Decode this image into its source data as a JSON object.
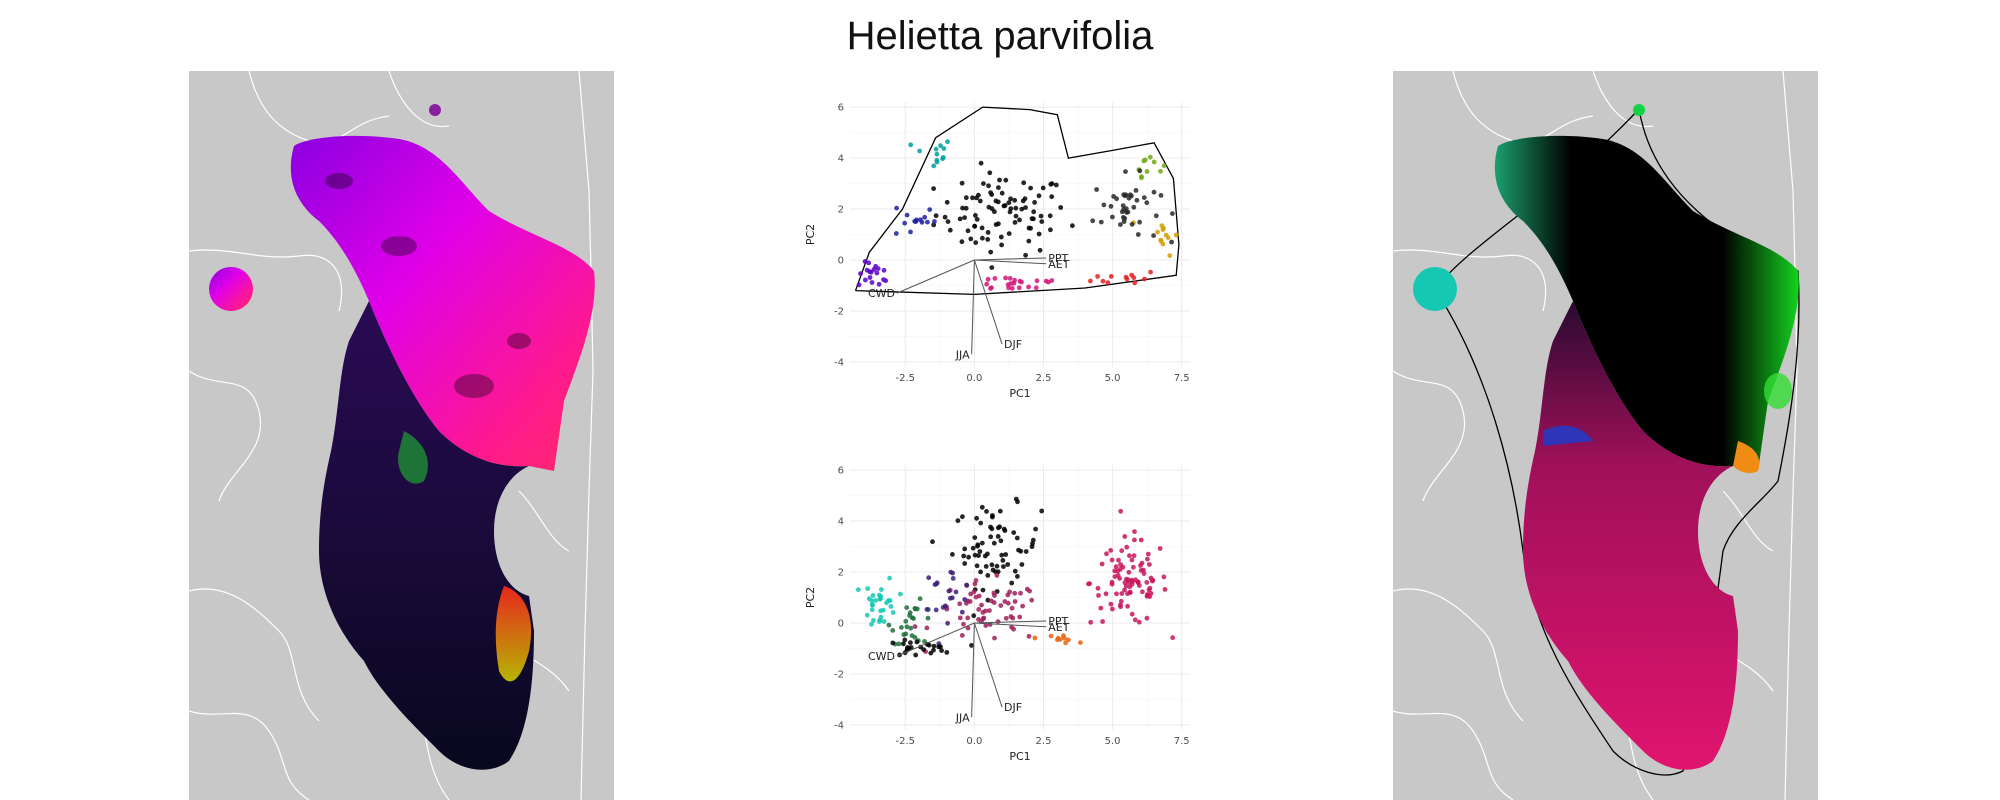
{
  "title": "Helietta parvifolia",
  "colors": {
    "map_background": "#c8c8c8",
    "map_borders": "#ffffff",
    "grid": "#ebebeb",
    "hull": "#000000",
    "loading_arrows": "#555555"
  },
  "chart_data": [
    {
      "type": "scatter",
      "panel": "top",
      "xlabel": "PC1",
      "ylabel": "PC2",
      "xlim": [
        -4.5,
        7.8
      ],
      "ylim": [
        -4.2,
        6.2
      ],
      "xticks": [
        "-2.5",
        "0.0",
        "2.5",
        "5.0",
        "7.5"
      ],
      "yticks": [
        "-4",
        "-2",
        "0",
        "2",
        "4",
        "6"
      ],
      "grid": true,
      "hull_outline": true,
      "point_cloud": [
        {
          "color": "#000000",
          "x_center": 1.0,
          "y_center": 1.8,
          "x_spread": 2.4,
          "y_spread": 1.6,
          "count": 90
        },
        {
          "color": "#5a00c8",
          "x_center": -3.6,
          "y_center": -0.6,
          "x_spread": 0.6,
          "y_spread": 0.5,
          "count": 18
        },
        {
          "color": "#1e1ea0",
          "x_center": -2.2,
          "y_center": 1.6,
          "x_spread": 0.8,
          "y_spread": 0.8,
          "count": 14
        },
        {
          "color": "#00a0a0",
          "x_center": -1.5,
          "y_center": 4.2,
          "x_spread": 0.7,
          "y_spread": 0.6,
          "count": 12
        },
        {
          "color": "#d21478",
          "x_center": 1.5,
          "y_center": -0.9,
          "x_spread": 2.0,
          "y_spread": 0.35,
          "count": 22
        },
        {
          "color": "#e61e1e",
          "x_center": 5.5,
          "y_center": -0.7,
          "x_spread": 1.2,
          "y_spread": 0.3,
          "count": 12
        },
        {
          "color": "#d2a000",
          "x_center": 6.8,
          "y_center": 1.0,
          "x_spread": 0.6,
          "y_spread": 0.8,
          "count": 12
        },
        {
          "color": "#6eaa14",
          "x_center": 6.3,
          "y_center": 3.8,
          "x_spread": 0.5,
          "y_spread": 0.5,
          "count": 10
        },
        {
          "color": "#282828",
          "x_center": 5.5,
          "y_center": 2.0,
          "x_spread": 1.2,
          "y_spread": 1.3,
          "count": 40
        }
      ],
      "loadings": [
        {
          "label": "PPT",
          "x": 2.6,
          "y": 0.08
        },
        {
          "label": "AET",
          "x": 2.6,
          "y": -0.15
        },
        {
          "label": "CWD",
          "x": -2.8,
          "y": -1.3
        },
        {
          "label": "DJF",
          "x": 1.0,
          "y": -3.3
        },
        {
          "label": "JJA",
          "x": -0.1,
          "y": -3.7
        }
      ]
    },
    {
      "type": "scatter",
      "panel": "bottom",
      "xlabel": "PC1",
      "ylabel": "PC2",
      "xlim": [
        -4.5,
        7.8
      ],
      "ylim": [
        -4.2,
        6.2
      ],
      "xticks": [
        "-2.5",
        "0.0",
        "2.5",
        "5.0",
        "7.5"
      ],
      "yticks": [
        "-4",
        "-2",
        "0",
        "2",
        "4",
        "6"
      ],
      "grid": true,
      "hull_outline": false,
      "point_cloud": [
        {
          "color": "#000000",
          "x_center": 0.8,
          "y_center": 3.0,
          "x_spread": 1.6,
          "y_spread": 1.6,
          "count": 70
        },
        {
          "color": "#c8145a",
          "x_center": 5.6,
          "y_center": 1.6,
          "x_spread": 1.4,
          "y_spread": 1.7,
          "count": 90
        },
        {
          "color": "#a01e5a",
          "x_center": 0.5,
          "y_center": 0.4,
          "x_spread": 2.0,
          "y_spread": 1.2,
          "count": 60
        },
        {
          "color": "#14c8b4",
          "x_center": -3.4,
          "y_center": 0.8,
          "x_spread": 0.6,
          "y_spread": 1.0,
          "count": 30
        },
        {
          "color": "#1e6e3c",
          "x_center": -2.2,
          "y_center": 0.0,
          "x_spread": 0.8,
          "y_spread": 0.8,
          "count": 25
        },
        {
          "color": "#3c1e78",
          "x_center": -1.0,
          "y_center": 1.2,
          "x_spread": 1.0,
          "y_spread": 1.0,
          "count": 20
        },
        {
          "color": "#e66414",
          "x_center": 3.0,
          "y_center": -0.6,
          "x_spread": 0.7,
          "y_spread": 0.2,
          "count": 10
        },
        {
          "color": "#000000",
          "x_center": -2.0,
          "y_center": -1.0,
          "x_spread": 1.2,
          "y_spread": 0.3,
          "count": 25
        }
      ],
      "loadings": [
        {
          "label": "PPT",
          "x": 2.6,
          "y": 0.08
        },
        {
          "label": "AET",
          "x": 2.6,
          "y": -0.15
        },
        {
          "label": "CWD",
          "x": -2.8,
          "y": -1.3
        },
        {
          "label": "DJF",
          "x": 1.0,
          "y": -3.3
        },
        {
          "label": "JJA",
          "x": -0.1,
          "y": -3.7
        }
      ]
    }
  ]
}
